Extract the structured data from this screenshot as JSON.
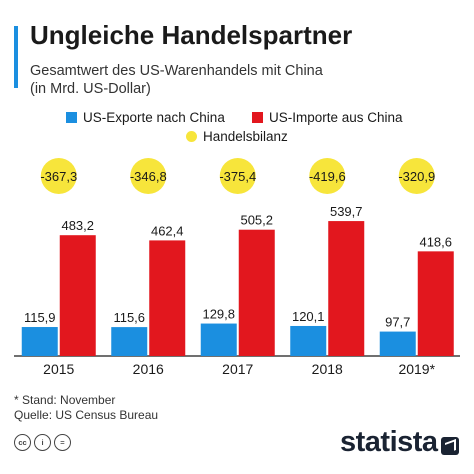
{
  "header": {
    "title": "Ungleiche Handelspartner",
    "subtitle_line1": "Gesamtwert des US-Warenhandels mit China",
    "subtitle_line2": "(in Mrd. US-Dollar)"
  },
  "colors": {
    "accent": "#1b8fe0",
    "exports": "#1b8fe0",
    "imports": "#e2171e",
    "balance": "#f7e53b",
    "axis": "#1a1a1a"
  },
  "chart_data": {
    "type": "bar",
    "categories": [
      "2015",
      "2016",
      "2017",
      "2018",
      "2019*"
    ],
    "series": [
      {
        "name": "US-Exporte nach China",
        "values": [
          115.9,
          115.6,
          129.8,
          120.1,
          97.7
        ],
        "labels": [
          "115,9",
          "115,6",
          "129,8",
          "120,1",
          "97,7"
        ]
      },
      {
        "name": "US-Importe aus China",
        "values": [
          483.2,
          462.4,
          505.2,
          539.7,
          418.6
        ],
        "labels": [
          "483,2",
          "462,4",
          "505,2",
          "539,7",
          "418,6"
        ]
      },
      {
        "name": "Handelsbilanz",
        "values": [
          -367.3,
          -346.8,
          -375.4,
          -419.6,
          -320.9
        ],
        "labels": [
          "-367,3",
          "-346,8",
          "-375,4",
          "-419,6",
          "-320,9"
        ]
      }
    ],
    "ylim": [
      0,
      540
    ]
  },
  "footer": {
    "note": "* Stand: November",
    "source": "Quelle: US Census Bureau"
  },
  "license_icons": [
    "cc-icon",
    "person-icon",
    "equals-icon"
  ],
  "brand": {
    "name": "statista"
  }
}
